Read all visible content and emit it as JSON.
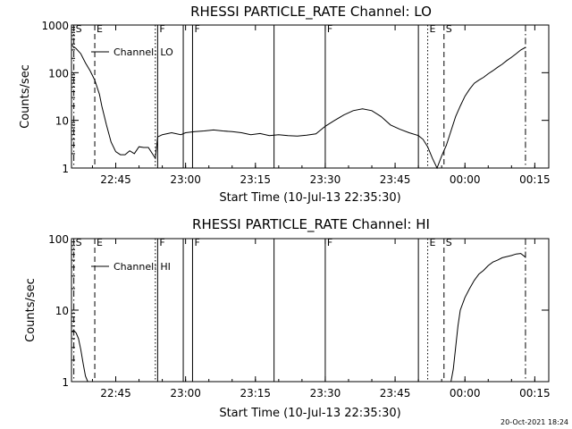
{
  "footer": {
    "timestamp": "20-Oct-2021 18:24"
  },
  "chart_data": [
    {
      "type": "line",
      "title": "RHESSI PARTICLE_RATE Channel: LO",
      "xlabel": "Start Time (10-Jul-13 22:35:30)",
      "ylabel": "Counts/sec",
      "y_scale": "log",
      "ylim": [
        1,
        1000
      ],
      "xlim": [
        "22:35:30",
        "00:18:00"
      ],
      "x_ticks": [
        "22:45",
        "23:00",
        "23:15",
        "23:30",
        "23:45",
        "00:00",
        "00:15"
      ],
      "y_ticks": [
        "1",
        "10",
        "100",
        "1000"
      ],
      "grid": false,
      "legend": {
        "position": "top-left",
        "entries": [
          {
            "name": "Channel: LO"
          }
        ]
      },
      "event_markers": [
        {
          "label": "S",
          "time": "22:36:00",
          "style": "dash-dot"
        },
        {
          "label": "E",
          "time": "22:40:30",
          "style": "dashed"
        },
        {
          "label": "",
          "time": "22:53:30",
          "style": "dotted"
        },
        {
          "label": "F",
          "time": "22:54:00",
          "style": "solid"
        },
        {
          "label": "",
          "time": "22:59:30",
          "style": "solid"
        },
        {
          "label": "F",
          "time": "23:01:30",
          "style": "solid"
        },
        {
          "label": "",
          "time": "23:19:00",
          "style": "solid"
        },
        {
          "label": "F",
          "time": "23:30:00",
          "style": "solid"
        },
        {
          "label": "",
          "time": "23:50:00",
          "style": "solid"
        },
        {
          "label": "E",
          "time": "23:52:00",
          "style": "dotted"
        },
        {
          "label": "S",
          "time": "23:55:30",
          "style": "dashed"
        },
        {
          "label": "",
          "time": "00:13:00",
          "style": "dash-dot"
        }
      ],
      "series": [
        {
          "name": "Channel: LO",
          "x": [
            "22:35:30",
            "22:36:30",
            "22:37:30",
            "22:38:30",
            "22:39:30",
            "22:40:30",
            "22:41:30",
            "22:42:00",
            "22:43:00",
            "22:44:00",
            "22:45:00",
            "22:46:00",
            "22:47:00",
            "22:48:00",
            "22:49:00",
            "22:50:00",
            "22:51:00",
            "22:52:00",
            "22:53:30",
            "22:54:00",
            "22:55:00",
            "22:57:00",
            "22:59:00",
            "23:00:00",
            "23:02:00",
            "23:04:00",
            "23:06:00",
            "23:08:00",
            "23:10:00",
            "23:12:00",
            "23:14:00",
            "23:16:00",
            "23:18:00",
            "23:20:00",
            "23:22:00",
            "23:24:00",
            "23:26:00",
            "23:28:00",
            "23:30:00",
            "23:32:00",
            "23:34:00",
            "23:36:00",
            "23:38:00",
            "23:40:00",
            "23:42:00",
            "23:44:00",
            "23:46:00",
            "23:48:00",
            "23:50:00",
            "23:51:00",
            "23:52:00",
            "23:53:00",
            "23:54:00",
            "23:55:00",
            "23:56:00",
            "23:57:00",
            "23:58:00",
            "23:59:00",
            "00:00:00",
            "00:01:00",
            "00:02:00",
            "00:03:00",
            "00:04:00",
            "00:05:00",
            "00:06:00",
            "00:07:00",
            "00:08:00",
            "00:09:00",
            "00:10:00",
            "00:11:00",
            "00:12:00",
            "00:13:00"
          ],
          "y": [
            380,
            320,
            250,
            160,
            110,
            70,
            35,
            20,
            8,
            3.5,
            2.2,
            1.9,
            1.9,
            2.3,
            2.0,
            2.8,
            2.7,
            2.7,
            1.6,
            4.5,
            5.0,
            5.5,
            5.0,
            5.5,
            5.8,
            6.0,
            6.3,
            6.0,
            5.8,
            5.5,
            5.0,
            5.3,
            4.8,
            5.0,
            4.8,
            4.7,
            4.9,
            5.2,
            7.5,
            10,
            13,
            16,
            17.5,
            16,
            12,
            8,
            6.5,
            5.5,
            4.8,
            4.0,
            2.8,
            1.6,
            1.0,
            1.8,
            3.0,
            6,
            12,
            20,
            32,
            45,
            60,
            70,
            80,
            95,
            110,
            130,
            150,
            180,
            210,
            250,
            300,
            340
          ]
        }
      ]
    },
    {
      "type": "line",
      "title": "RHESSI PARTICLE_RATE Channel: HI",
      "xlabel": "Start Time (10-Jul-13 22:35:30)",
      "ylabel": "Counts/sec",
      "y_scale": "log",
      "ylim": [
        1,
        100
      ],
      "xlim": [
        "22:35:30",
        "00:18:00"
      ],
      "x_ticks": [
        "22:45",
        "23:00",
        "23:15",
        "23:30",
        "23:45",
        "00:00",
        "00:15"
      ],
      "y_ticks": [
        "1",
        "10",
        "100"
      ],
      "grid": false,
      "legend": {
        "position": "top-left",
        "entries": [
          {
            "name": "Channel: HI"
          }
        ]
      },
      "event_markers": [
        {
          "label": "S",
          "time": "22:36:00",
          "style": "dash-dot"
        },
        {
          "label": "E",
          "time": "22:40:30",
          "style": "dashed"
        },
        {
          "label": "",
          "time": "22:53:30",
          "style": "dotted"
        },
        {
          "label": "F",
          "time": "22:54:00",
          "style": "solid"
        },
        {
          "label": "",
          "time": "22:59:30",
          "style": "solid"
        },
        {
          "label": "F",
          "time": "23:01:30",
          "style": "solid"
        },
        {
          "label": "",
          "time": "23:19:00",
          "style": "solid"
        },
        {
          "label": "F",
          "time": "23:30:00",
          "style": "solid"
        },
        {
          "label": "",
          "time": "23:50:00",
          "style": "solid"
        },
        {
          "label": "E",
          "time": "23:52:00",
          "style": "dotted"
        },
        {
          "label": "S",
          "time": "23:55:30",
          "style": "dashed"
        },
        {
          "label": "",
          "time": "00:13:00",
          "style": "dash-dot"
        }
      ],
      "series": [
        {
          "name": "Channel: HI",
          "x": [
            "22:35:30",
            "22:36:00",
            "22:36:30",
            "22:37:00",
            "22:37:30",
            "22:38:00",
            "22:38:30",
            "22:39:00",
            "23:57:00",
            "23:57:30",
            "23:58:00",
            "23:58:30",
            "23:59:00",
            "00:00:00",
            "00:01:00",
            "00:02:00",
            "00:03:00",
            "00:04:00",
            "00:05:00",
            "00:06:00",
            "00:07:00",
            "00:08:00",
            "00:09:00",
            "00:10:00",
            "00:11:00",
            "00:12:00",
            "00:13:00"
          ],
          "y": [
            5,
            5.2,
            4.8,
            4,
            2.8,
            1.8,
            1.2,
            1.0,
            1.0,
            1.5,
            3,
            6,
            10,
            15,
            20,
            26,
            32,
            36,
            42,
            47,
            50,
            54,
            56,
            58,
            61,
            62,
            55
          ]
        }
      ]
    }
  ]
}
